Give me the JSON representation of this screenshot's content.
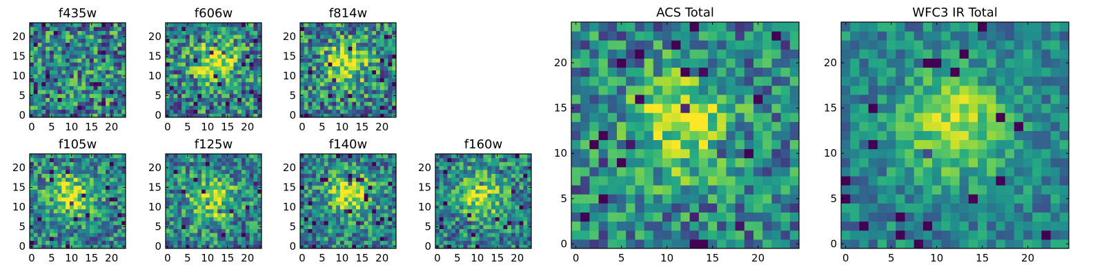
{
  "chart_data": [
    {
      "type": "heatmap",
      "title": "f435w",
      "xticks": [
        0,
        5,
        10,
        15,
        20
      ],
      "yticks": [
        0,
        5,
        10,
        15,
        20
      ],
      "grid_size": 24,
      "colormap": "viridis",
      "peak": null,
      "noise": 0.38,
      "seed": 11
    },
    {
      "type": "heatmap",
      "title": "f606w",
      "xticks": [
        0,
        5,
        10,
        15,
        20
      ],
      "yticks": [
        0,
        5,
        10,
        15,
        20
      ],
      "grid_size": 24,
      "colormap": "viridis",
      "peak": [
        12,
        13
      ],
      "noise": 0.36,
      "seed": 23
    },
    {
      "type": "heatmap",
      "title": "f814w",
      "xticks": [
        0,
        5,
        10,
        15,
        20
      ],
      "yticks": [
        0,
        5,
        10,
        15,
        20
      ],
      "grid_size": 24,
      "colormap": "viridis",
      "peak": [
        11,
        13
      ],
      "noise": 0.36,
      "seed": 37
    },
    {
      "type": "heatmap",
      "title": "f105w",
      "xticks": [
        0,
        5,
        10,
        15,
        20
      ],
      "yticks": [
        0,
        5,
        10,
        15,
        20
      ],
      "grid_size": 24,
      "colormap": "viridis",
      "peak": [
        10,
        13
      ],
      "noise": 0.3,
      "seed": 41
    },
    {
      "type": "heatmap",
      "title": "f125w",
      "xticks": [
        0,
        5,
        10,
        15,
        20
      ],
      "yticks": [
        0,
        5,
        10,
        15,
        20
      ],
      "grid_size": 24,
      "colormap": "viridis",
      "peak": [
        11,
        12
      ],
      "noise": 0.32,
      "seed": 53
    },
    {
      "type": "heatmap",
      "title": "f140w",
      "xticks": [
        0,
        5,
        10,
        15,
        20
      ],
      "yticks": [
        0,
        5,
        10,
        15,
        20
      ],
      "grid_size": 24,
      "colormap": "viridis",
      "peak": [
        12,
        13
      ],
      "noise": 0.3,
      "seed": 67
    },
    {
      "type": "heatmap",
      "title": "f160w",
      "xticks": [
        0,
        5,
        10,
        15,
        20
      ],
      "yticks": [
        0,
        5,
        10,
        15,
        20
      ],
      "grid_size": 24,
      "colormap": "viridis",
      "peak": [
        11,
        13
      ],
      "noise": 0.3,
      "seed": 79
    },
    {
      "type": "heatmap",
      "title": "ACS Total",
      "xticks": [
        0,
        5,
        10,
        15,
        20
      ],
      "yticks": [
        0,
        5,
        10,
        15,
        20
      ],
      "grid_size": 25,
      "colormap": "viridis",
      "peak": [
        11.5,
        13
      ],
      "noise": 0.3,
      "seed": 97
    },
    {
      "type": "heatmap",
      "title": "WFC3 IR Total",
      "xticks": [
        0,
        5,
        10,
        15,
        20
      ],
      "yticks": [
        0,
        5,
        10,
        15,
        20
      ],
      "grid_size": 25,
      "colormap": "viridis",
      "peak": [
        12,
        13
      ],
      "noise": 0.2,
      "seed": 113
    }
  ]
}
